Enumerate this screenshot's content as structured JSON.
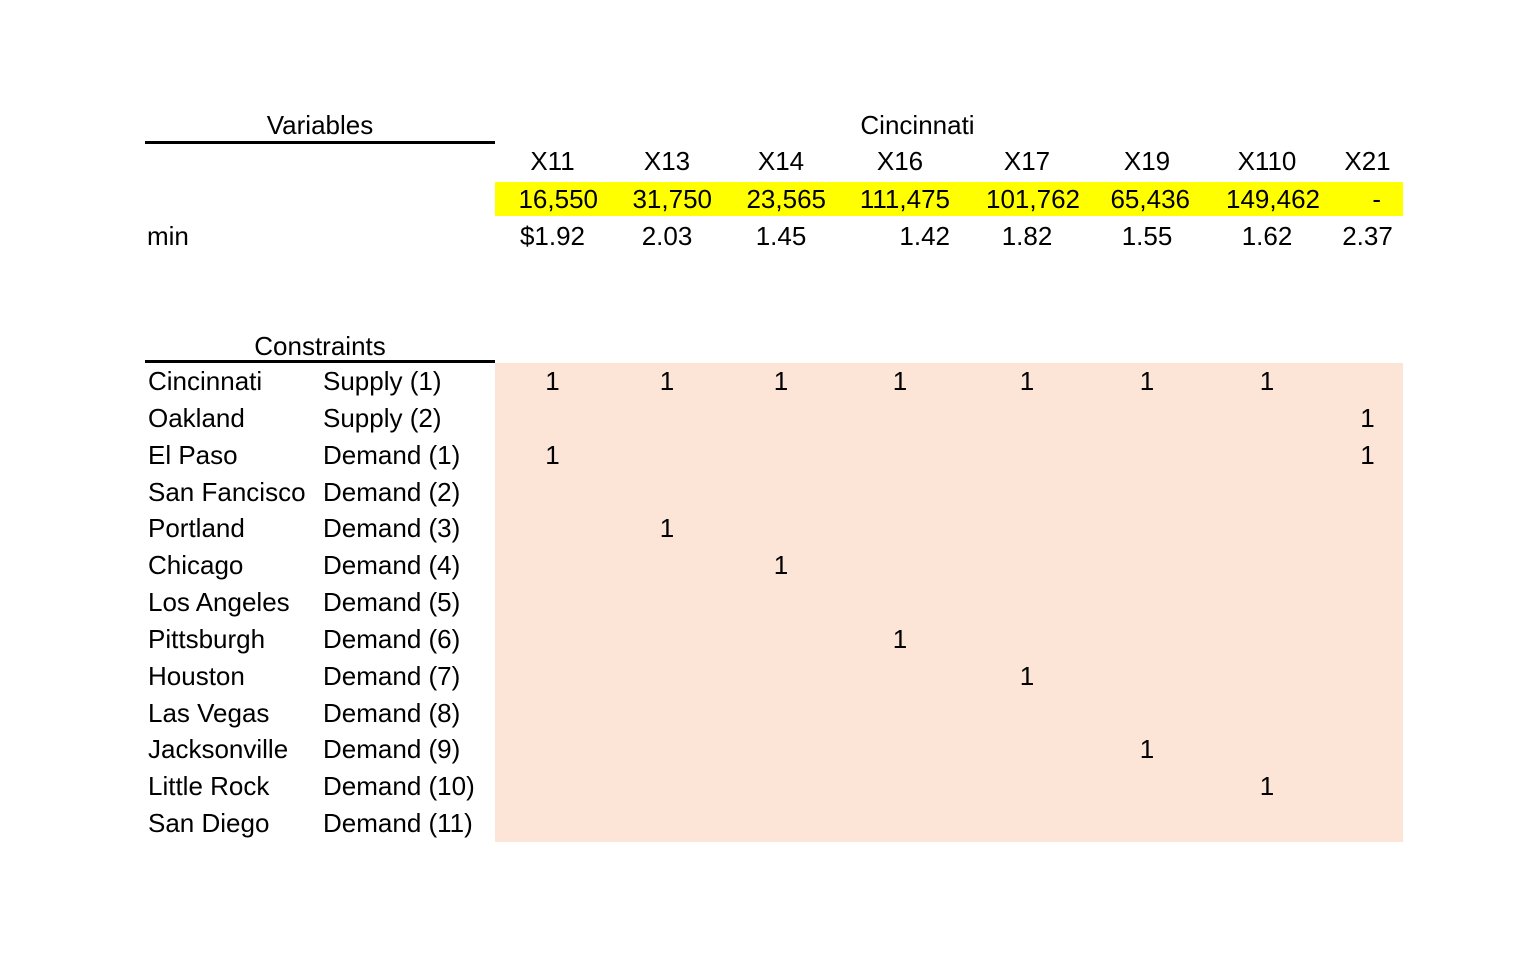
{
  "variables": {
    "title": "Variables",
    "group_label": "Cincinnati",
    "columns": [
      "X11",
      "X13",
      "X14",
      "X16",
      "X17",
      "X19",
      "X110",
      "X21"
    ],
    "current_values": [
      "16,550",
      "31,750",
      "23,565",
      "111,475",
      "101,762",
      "65,436",
      "149,462",
      "-"
    ],
    "objective_row_label": "min",
    "objective_coefficients": [
      "$1.92",
      "2.03",
      "1.45",
      "1.42",
      "1.82",
      "1.55",
      "1.62",
      "2.37"
    ]
  },
  "constraints": {
    "title": "Constraints",
    "rows": [
      {
        "city": "Cincinnati",
        "label": "Supply (1)",
        "coeffs": [
          "1",
          "1",
          "1",
          "1",
          "1",
          "1",
          "1",
          ""
        ]
      },
      {
        "city": "Oakland",
        "label": "Supply (2)",
        "coeffs": [
          "",
          "",
          "",
          "",
          "",
          "",
          "",
          "1"
        ]
      },
      {
        "city": "El Paso",
        "label": "Demand (1)",
        "coeffs": [
          "1",
          "",
          "",
          "",
          "",
          "",
          "",
          "1"
        ]
      },
      {
        "city": "San Fancisco",
        "label": "Demand (2)",
        "coeffs": [
          "",
          "",
          "",
          "",
          "",
          "",
          "",
          ""
        ]
      },
      {
        "city": "Portland",
        "label": "Demand (3)",
        "coeffs": [
          "",
          "1",
          "",
          "",
          "",
          "",
          "",
          ""
        ]
      },
      {
        "city": "Chicago",
        "label": "Demand (4)",
        "coeffs": [
          "",
          "",
          "1",
          "",
          "",
          "",
          "",
          ""
        ]
      },
      {
        "city": "Los Angeles",
        "label": "Demand (5)",
        "coeffs": [
          "",
          "",
          "",
          "",
          "",
          "",
          "",
          ""
        ]
      },
      {
        "city": "Pittsburgh",
        "label": "Demand (6)",
        "coeffs": [
          "",
          "",
          "",
          "1",
          "",
          "",
          "",
          ""
        ]
      },
      {
        "city": "Houston",
        "label": "Demand (7)",
        "coeffs": [
          "",
          "",
          "",
          "",
          "1",
          "",
          "",
          ""
        ]
      },
      {
        "city": "Las Vegas",
        "label": "Demand (8)",
        "coeffs": [
          "",
          "",
          "",
          "",
          "",
          "",
          "",
          ""
        ]
      },
      {
        "city": "Jacksonville",
        "label": "Demand (9)",
        "coeffs": [
          "",
          "",
          "",
          "",
          "",
          "1",
          "",
          ""
        ]
      },
      {
        "city": "Little Rock",
        "label": "Demand (10)",
        "coeffs": [
          "",
          "",
          "",
          "",
          "",
          "",
          "1",
          ""
        ]
      },
      {
        "city": "San Diego",
        "label": "Demand (11)",
        "coeffs": [
          "",
          "",
          "",
          "",
          "",
          "",
          "",
          ""
        ]
      }
    ]
  },
  "colors": {
    "value_highlight": "#FFFF00",
    "matrix_background": "#FCE4D6"
  }
}
